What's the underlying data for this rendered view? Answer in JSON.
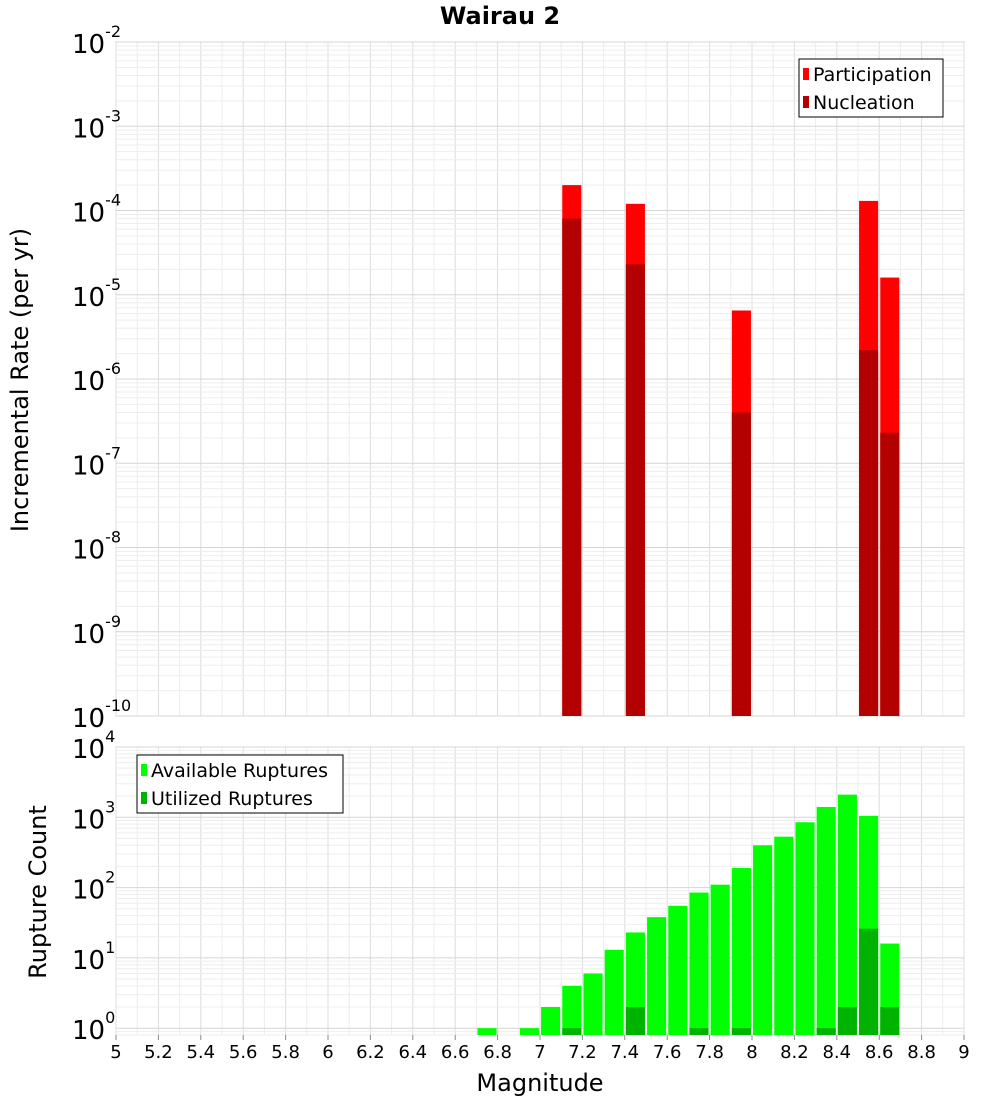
{
  "chart_data": [
    {
      "type": "bar",
      "title": "Wairau 2",
      "ylabel": "Incremental Rate (per yr)",
      "xlabel": "",
      "xlim": [
        5,
        9
      ],
      "ylim": [
        1e-10,
        0.01
      ],
      "yscale": "log",
      "y_tick_exponents": [
        "-10",
        "-9",
        "-8",
        "-7",
        "-6",
        "-5",
        "-4",
        "-3",
        "-2"
      ],
      "y_tick_base": "10",
      "grid": true,
      "legend_position": "top-right",
      "bar_width": 0.09,
      "series": [
        {
          "name": "Participation",
          "color": "#ff0000",
          "points": [
            {
              "x": 7.15,
              "y": 0.0002
            },
            {
              "x": 7.45,
              "y": 0.00012
            },
            {
              "x": 7.95,
              "y": 6.5e-06
            },
            {
              "x": 8.55,
              "y": 0.00013
            },
            {
              "x": 8.65,
              "y": 1.6e-05
            }
          ]
        },
        {
          "name": "Nucleation",
          "color": "#b30000",
          "points": [
            {
              "x": 7.15,
              "y": 8e-05
            },
            {
              "x": 7.45,
              "y": 2.3e-05
            },
            {
              "x": 7.95,
              "y": 4e-07
            },
            {
              "x": 8.55,
              "y": 2.2e-06
            },
            {
              "x": 8.65,
              "y": 2.3e-07
            }
          ]
        }
      ]
    },
    {
      "type": "bar",
      "title": "",
      "ylabel": "Rupture Count",
      "xlabel": "Magnitude",
      "xlim": [
        5,
        9
      ],
      "ylim": [
        0.8,
        10000
      ],
      "yscale": "log",
      "y_tick_exponents": [
        "0",
        "1",
        "2",
        "3",
        "4"
      ],
      "y_tick_base": "10",
      "x_ticks": [
        "5",
        "5.2",
        "5.4",
        "5.6",
        "5.8",
        "6",
        "6.2",
        "6.4",
        "6.6",
        "6.8",
        "7",
        "7.2",
        "7.4",
        "7.6",
        "7.8",
        "8",
        "8.2",
        "8.4",
        "8.6",
        "8.8",
        "9"
      ],
      "grid": true,
      "legend_position": "top-left",
      "bar_width": 0.09,
      "series": [
        {
          "name": "Available Ruptures",
          "color": "#00ff00",
          "points": [
            {
              "x": 6.75,
              "y": 1
            },
            {
              "x": 6.95,
              "y": 1
            },
            {
              "x": 7.05,
              "y": 2
            },
            {
              "x": 7.15,
              "y": 4
            },
            {
              "x": 7.25,
              "y": 6
            },
            {
              "x": 7.35,
              "y": 13
            },
            {
              "x": 7.45,
              "y": 23
            },
            {
              "x": 7.55,
              "y": 38
            },
            {
              "x": 7.65,
              "y": 55
            },
            {
              "x": 7.75,
              "y": 85
            },
            {
              "x": 7.85,
              "y": 110
            },
            {
              "x": 7.95,
              "y": 190
            },
            {
              "x": 8.05,
              "y": 400
            },
            {
              "x": 8.15,
              "y": 530
            },
            {
              "x": 8.25,
              "y": 850
            },
            {
              "x": 8.35,
              "y": 1400
            },
            {
              "x": 8.45,
              "y": 2100
            },
            {
              "x": 8.55,
              "y": 1050
            },
            {
              "x": 8.65,
              "y": 16
            }
          ]
        },
        {
          "name": "Utilized Ruptures",
          "color": "#00b300",
          "points": [
            {
              "x": 7.15,
              "y": 1
            },
            {
              "x": 7.45,
              "y": 2
            },
            {
              "x": 7.75,
              "y": 1
            },
            {
              "x": 7.95,
              "y": 1
            },
            {
              "x": 8.35,
              "y": 1
            },
            {
              "x": 8.45,
              "y": 2
            },
            {
              "x": 8.55,
              "y": 26
            },
            {
              "x": 8.65,
              "y": 2
            }
          ]
        }
      ]
    }
  ]
}
